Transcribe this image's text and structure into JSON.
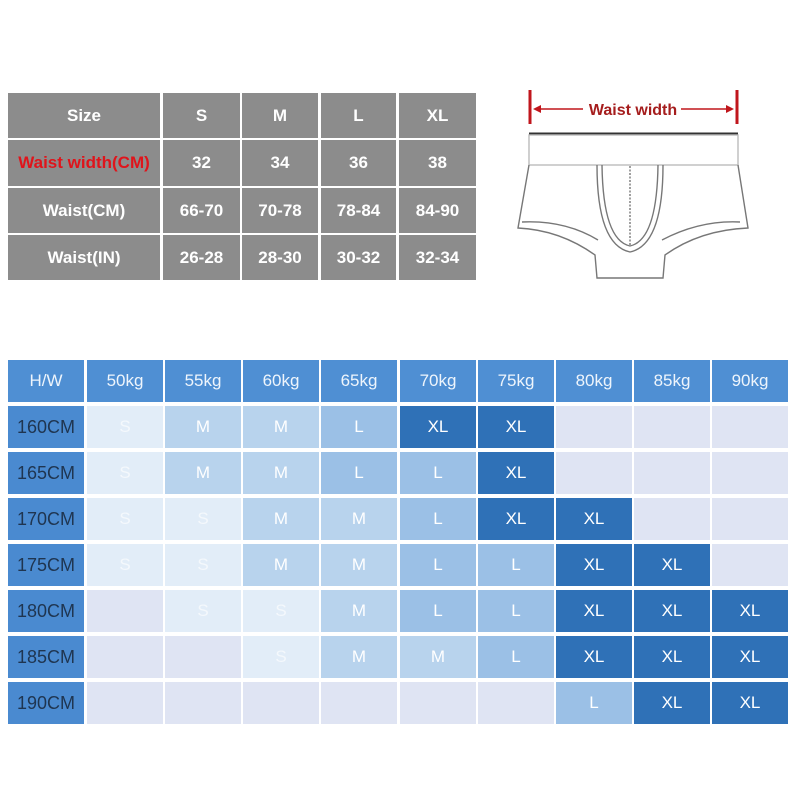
{
  "size_table": {
    "rows": [
      {
        "label": "Size",
        "values": [
          "S",
          "M",
          "L",
          "XL"
        ],
        "highlight": false
      },
      {
        "label": "Waist width(CM)",
        "values": [
          "32",
          "34",
          "36",
          "38"
        ],
        "highlight": true
      },
      {
        "label": "Waist(CM)",
        "values": [
          "66-70",
          "70-78",
          "78-84",
          "84-90"
        ],
        "highlight": false
      },
      {
        "label": "Waist(IN)",
        "values": [
          "26-28",
          "28-30",
          "30-32",
          "32-34"
        ],
        "highlight": false
      }
    ]
  },
  "diagram": {
    "label": "Waist width"
  },
  "hw_table": {
    "corner": "H/W",
    "weights": [
      "50kg",
      "55kg",
      "60kg",
      "65kg",
      "70kg",
      "75kg",
      "80kg",
      "85kg",
      "90kg"
    ],
    "rows": [
      {
        "height": "160CM",
        "sizes": [
          "S",
          "M",
          "M",
          "L",
          "XL",
          "XL",
          "",
          "",
          ""
        ]
      },
      {
        "height": "165CM",
        "sizes": [
          "S",
          "M",
          "M",
          "L",
          "L",
          "XL",
          "",
          "",
          ""
        ]
      },
      {
        "height": "170CM",
        "sizes": [
          "S",
          "S",
          "M",
          "M",
          "L",
          "XL",
          "XL",
          "",
          ""
        ]
      },
      {
        "height": "175CM",
        "sizes": [
          "S",
          "S",
          "M",
          "M",
          "L",
          "L",
          "XL",
          "XL",
          ""
        ]
      },
      {
        "height": "180CM",
        "sizes": [
          "",
          "S",
          "S",
          "M",
          "L",
          "L",
          "XL",
          "XL",
          "XL"
        ]
      },
      {
        "height": "185CM",
        "sizes": [
          "",
          "",
          "S",
          "M",
          "M",
          "L",
          "XL",
          "XL",
          "XL"
        ]
      },
      {
        "height": "190CM",
        "sizes": [
          "",
          "",
          "",
          "",
          "",
          "",
          "L",
          "XL",
          "XL"
        ]
      }
    ]
  },
  "colors": {
    "gray_cell": "#8c8c8c",
    "red_text": "#e0141b",
    "header_blue": "#4f8fd3",
    "S": "#e2edf8",
    "M": "#b8d3ed",
    "L": "#9bc0e6",
    "XL": "#2f71b7",
    "empty": "#dfe4f3"
  }
}
